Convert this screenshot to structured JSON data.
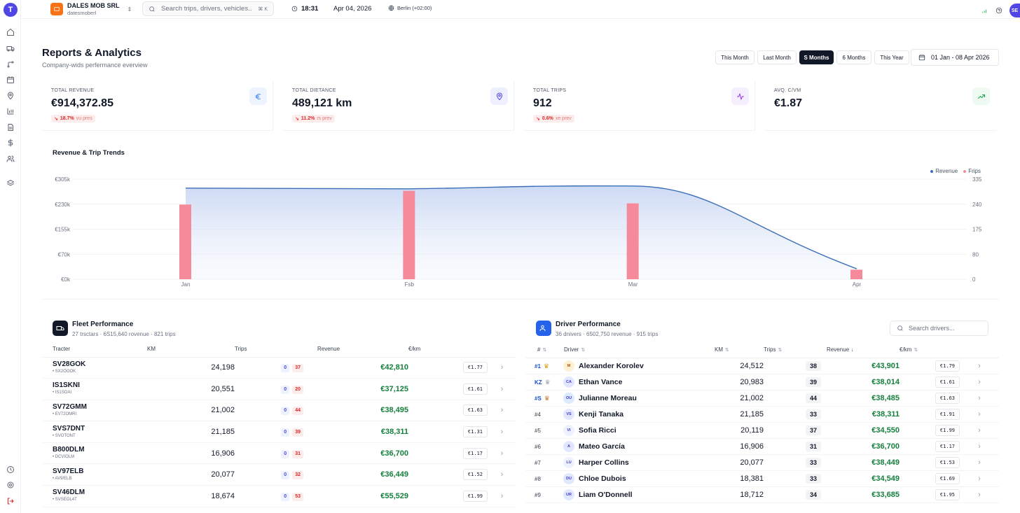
{
  "app": {
    "logo_letter": "T",
    "user_initials": "SE"
  },
  "company": {
    "name": "DALES MOB SRL",
    "slug": "datesmoberl"
  },
  "search": {
    "placeholder": "Search trips, drivers, vehicles...",
    "shortcut": "⌘ K"
  },
  "topbar": {
    "time": "18:31",
    "date": "Apr 04, 2026",
    "timezone": "Berlin (+02:00)"
  },
  "page": {
    "title": "Reports & Analytics",
    "subtitle": "Company-wids perfermance everview"
  },
  "periods": [
    "This Month",
    "Last Month",
    "S Months",
    "6 Months",
    "This Year"
  ],
  "active_period": "S Months",
  "date_range": "01 Jan - 08 Apr 2026",
  "kpis": [
    {
      "label": "TOTAL REVENUE",
      "value": "€914,372.85",
      "trend": "18.7%",
      "trend_note": "vu pres",
      "icon": "euro-icon",
      "icon_color": "#3b82f6",
      "icon_bg": "#eef4ff"
    },
    {
      "label": "TOTAL DIETANCE",
      "value": "489,121 km",
      "trend": "11.2%",
      "trend_note": "rs prev",
      "icon": "map-pin-icon",
      "icon_color": "#4f46e5",
      "icon_bg": "#eef0ff"
    },
    {
      "label": "TOTAL TRIPS",
      "value": "912",
      "trend": "0.6%",
      "trend_note": "xe prev",
      "icon": "activity-icon",
      "icon_color": "#9333ea",
      "icon_bg": "#f5eefe"
    },
    {
      "label": "AVQ. C/VM",
      "value": "€1.87",
      "trend": "",
      "trend_note": "",
      "icon": "trending-up-icon",
      "icon_color": "#16a34a",
      "icon_bg": "#eefaf2"
    }
  ],
  "chart_data": {
    "type": "bar",
    "title": "Revenue & Trip Trends",
    "categories": [
      "Jan",
      "Fsb",
      "Mar",
      "Apr"
    ],
    "series": [
      {
        "name": "Revenue",
        "kind": "area",
        "color": "#3b6fb6",
        "values": [
          305,
          305,
          305,
          35
        ]
      },
      {
        "name": "Frips",
        "kind": "bar",
        "color": "#f58a9b",
        "values": [
          250,
          296,
          254,
          32
        ]
      }
    ],
    "y_left": {
      "ticks": [
        "€305k",
        "€230k",
        "€155k",
        "€70k",
        "€0k"
      ],
      "min": 0,
      "max": 335
    },
    "y_right": {
      "ticks": [
        "335",
        "240",
        "175",
        "80",
        "0"
      ],
      "min": 0,
      "max": 335
    },
    "legend_position": "top-right"
  },
  "fleet": {
    "title": "Fleet Performance",
    "subtitle": "27 trsctars · 6S15,640 rovenue · 821 trips",
    "headers": [
      "Tracter",
      "KM",
      "Trips",
      "Revenue",
      "€/km"
    ],
    "rows": [
      {
        "name": "SV28GOK",
        "sub": "• SX2OOOK",
        "km": "24,198",
        "t1": "0",
        "t2": "37",
        "revenue": "€42,810",
        "eur_km": "€1.77"
      },
      {
        "name": "IS1SKNI",
        "sub": "• IS1SOAI",
        "km": "20,551",
        "t1": "0",
        "t2": "20",
        "revenue": "€37,125",
        "eur_km": "€1.61"
      },
      {
        "name": "SV72GMM",
        "sub": "• EV72OMRI",
        "km": "21,002",
        "t1": "0",
        "t2": "44",
        "revenue": "€38,495",
        "eur_km": "€1.63"
      },
      {
        "name": "SVS7DNT",
        "sub": "• SVOTONT",
        "km": "21,185",
        "t1": "0",
        "t2": "39",
        "revenue": "€38,311",
        "eur_km": "€1.31"
      },
      {
        "name": "B800DLM",
        "sub": "• DCVIOLM",
        "km": "16,906",
        "t1": "0",
        "t2": "31",
        "revenue": "€36,700",
        "eur_km": "€1.17"
      },
      {
        "name": "SV97ELB",
        "sub": "• AV9/ELB",
        "km": "20,077",
        "t1": "0",
        "t2": "32",
        "revenue": "€36,449",
        "eur_km": "€1.52"
      },
      {
        "name": "SV46DLM",
        "sub": "• SVSEOL4T",
        "km": "18,674",
        "t1": "0",
        "t2": "53",
        "revenue": "€55,529",
        "eur_km": "€1.99"
      }
    ]
  },
  "drivers": {
    "title": "Driver Performance",
    "subtitle": "36 dnivers · 6502,750 revenue · 915 trips",
    "search_placeholder": "Search drivers...",
    "headers": [
      "#",
      "Driver",
      "KM",
      "Trips",
      "Revenue",
      "€/km"
    ],
    "rows": [
      {
        "rank": "#1",
        "top": true,
        "badge": "gold",
        "initials": "M",
        "name": "Alexander Korolev",
        "km": "24,512",
        "trips": "38",
        "revenue": "€43,901",
        "eur_km": "€1.79"
      },
      {
        "rank": "KZ",
        "top": true,
        "badge": "silver",
        "initials": "CA",
        "name": "Ethan Vance",
        "km": "20,983",
        "trips": "39",
        "revenue": "€38,014",
        "eur_km": "€1.61"
      },
      {
        "rank": "#S",
        "top": true,
        "badge": "bronze",
        "initials": "OU",
        "name": "Julianne Moreau",
        "km": "21,002",
        "trips": "44",
        "revenue": "€38,485",
        "eur_km": "€1.63"
      },
      {
        "rank": "#4",
        "top": false,
        "badge": "",
        "initials": "VS",
        "name": "Kenji Tanaka",
        "km": "21,185",
        "trips": "33",
        "revenue": "€38,311",
        "eur_km": "€1.91"
      },
      {
        "rank": "#5",
        "top": false,
        "badge": "",
        "initials": "VI",
        "name": "Sofia Ricci",
        "km": "20,119",
        "trips": "37",
        "revenue": "€34,550",
        "eur_km": "€1.99"
      },
      {
        "rank": "#6",
        "top": false,
        "badge": "",
        "initials": "A",
        "name": "Mateo García",
        "km": "16,906",
        "trips": "31",
        "revenue": "€36,700",
        "eur_km": "€1.17"
      },
      {
        "rank": "#7",
        "top": false,
        "badge": "",
        "initials": "LU",
        "name": "Harper Collins",
        "km": "20,077",
        "trips": "33",
        "revenue": "€38,449",
        "eur_km": "€1.53"
      },
      {
        "rank": "#8",
        "top": false,
        "badge": "",
        "initials": "DU",
        "name": "Chloe Dubois",
        "km": "18,381",
        "trips": "33",
        "revenue": "€34,549",
        "eur_km": "€1.69"
      },
      {
        "rank": "#9",
        "top": false,
        "badge": "",
        "initials": "UR",
        "name": "Liam O'Donnell",
        "km": "18,712",
        "trips": "34",
        "revenue": "€33,685",
        "eur_km": "€1.95"
      }
    ]
  }
}
